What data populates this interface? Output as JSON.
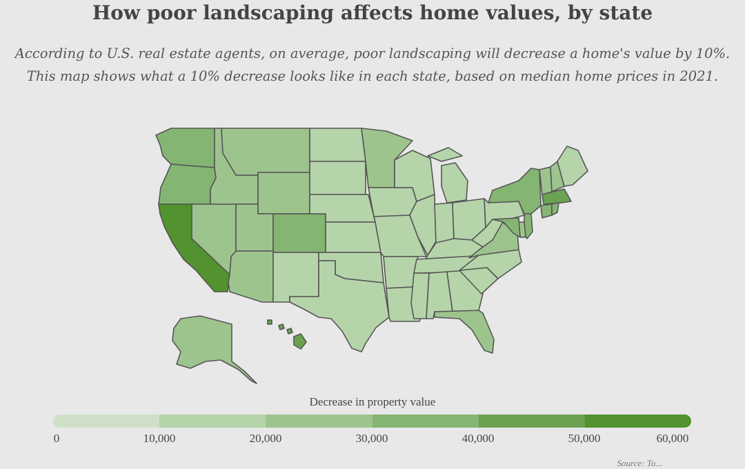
{
  "title": "How poor landscaping affects home values, by state",
  "subtitle_line1": "According to U.S. real estate agents, on average, poor landscaping will decrease a home's value by 10%.",
  "subtitle_line2": "This map shows what a 10% decrease looks like in each state, based on median home prices in 2021.",
  "legend": {
    "title": "Decrease in property value",
    "ticks": [
      "0",
      "10,000",
      "20,000",
      "30,000",
      "40,000",
      "50,000",
      "60,000"
    ],
    "colors": [
      "#cfe0c8",
      "#b6d4aa",
      "#9ec48e",
      "#85b572",
      "#6ba252",
      "#52922f"
    ]
  },
  "source": "Source: To...",
  "states": [
    {
      "name": "Washington",
      "bin": 3
    },
    {
      "name": "Oregon",
      "bin": 3
    },
    {
      "name": "California",
      "bin": 5
    },
    {
      "name": "Nevada",
      "bin": 2
    },
    {
      "name": "Idaho",
      "bin": 2
    },
    {
      "name": "Montana",
      "bin": 2
    },
    {
      "name": "Wyoming",
      "bin": 2
    },
    {
      "name": "Utah",
      "bin": 2
    },
    {
      "name": "Arizona",
      "bin": 2
    },
    {
      "name": "Colorado",
      "bin": 3
    },
    {
      "name": "New Mexico",
      "bin": 1
    },
    {
      "name": "North Dakota",
      "bin": 1
    },
    {
      "name": "South Dakota",
      "bin": 1
    },
    {
      "name": "Nebraska",
      "bin": 1
    },
    {
      "name": "Kansas",
      "bin": 1
    },
    {
      "name": "Oklahoma",
      "bin": 1
    },
    {
      "name": "Texas",
      "bin": 1
    },
    {
      "name": "Minnesota",
      "bin": 2
    },
    {
      "name": "Iowa",
      "bin": 1
    },
    {
      "name": "Missouri",
      "bin": 1
    },
    {
      "name": "Arkansas",
      "bin": 1
    },
    {
      "name": "Louisiana",
      "bin": 1
    },
    {
      "name": "Wisconsin",
      "bin": 1
    },
    {
      "name": "Illinois",
      "bin": 1
    },
    {
      "name": "Michigan",
      "bin": 1
    },
    {
      "name": "Indiana",
      "bin": 1
    },
    {
      "name": "Ohio",
      "bin": 1
    },
    {
      "name": "Kentucky",
      "bin": 1
    },
    {
      "name": "Tennessee",
      "bin": 1
    },
    {
      "name": "Mississippi",
      "bin": 1
    },
    {
      "name": "Alabama",
      "bin": 1
    },
    {
      "name": "Georgia",
      "bin": 1
    },
    {
      "name": "Florida",
      "bin": 2
    },
    {
      "name": "South Carolina",
      "bin": 1
    },
    {
      "name": "North Carolina",
      "bin": 1
    },
    {
      "name": "Virginia",
      "bin": 2
    },
    {
      "name": "West Virginia",
      "bin": 1
    },
    {
      "name": "Pennsylvania",
      "bin": 1
    },
    {
      "name": "New York",
      "bin": 3
    },
    {
      "name": "Vermont",
      "bin": 2
    },
    {
      "name": "New Hampshire",
      "bin": 2
    },
    {
      "name": "Maine",
      "bin": 1
    },
    {
      "name": "Massachusetts",
      "bin": 4
    },
    {
      "name": "Connecticut",
      "bin": 3
    },
    {
      "name": "Rhode Island",
      "bin": 3
    },
    {
      "name": "New Jersey",
      "bin": 3
    },
    {
      "name": "Delaware",
      "bin": 2
    },
    {
      "name": "Maryland",
      "bin": 3
    },
    {
      "name": "Alaska",
      "bin": 2
    },
    {
      "name": "Hawaii",
      "bin": 4
    }
  ]
}
